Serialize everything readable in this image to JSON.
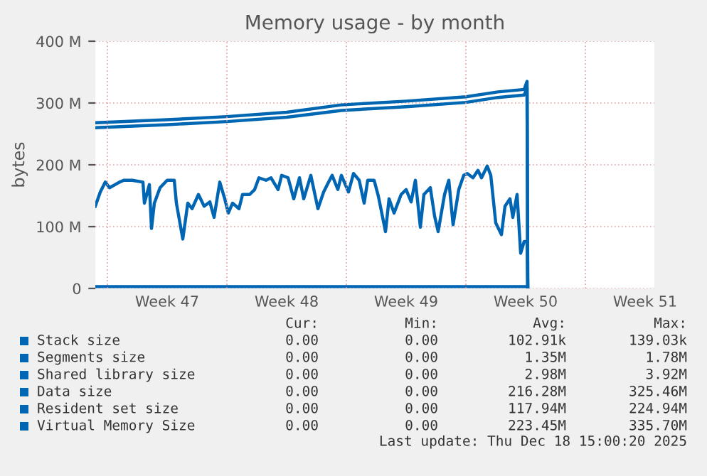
{
  "chart_data": {
    "type": "line",
    "title": "Memory usage - by month",
    "ylabel": "bytes",
    "xlim": [
      "2025-11-16T07:00",
      "2025-12-19T01:00"
    ],
    "ylim": [
      0,
      400
    ],
    "xticks": [
      {
        "value": "2025-11-17T00:00",
        "label": null
      },
      {
        "value": "2025-11-20T12:00",
        "label": "Week 47"
      },
      {
        "value": "2025-11-24T00:00",
        "label": null
      },
      {
        "value": "2025-11-27T12:00",
        "label": "Week 48"
      },
      {
        "value": "2025-12-01T00:00",
        "label": null
      },
      {
        "value": "2025-12-04T12:00",
        "label": "Week 49"
      },
      {
        "value": "2025-12-08T00:00",
        "label": null
      },
      {
        "value": "2025-12-11T12:00",
        "label": "Week 50"
      },
      {
        "value": "2025-12-15T00:00",
        "label": null
      },
      {
        "value": "2025-12-18T12:00",
        "label": "Week 51"
      }
    ],
    "yticks": [
      0,
      {
        "value": 100,
        "label": "100 M"
      },
      {
        "value": 200,
        "label": "200 M"
      },
      {
        "value": 300,
        "label": "300 M"
      },
      {
        "value": 400,
        "label": "400 M"
      }
    ],
    "grid": true,
    "legend": "bottom",
    "marker": "none",
    "line_style": "solid",
    "series": [
      {
        "name": "Stack size",
        "color": "#0066b3"
      },
      {
        "name": "Segments size",
        "color": "#0066b4"
      },
      {
        "name": "Shared library size",
        "color": "#0066b5",
        "x": [
          "2025-11-16T07:00",
          "2025-12-11T14:00",
          "2025-12-11T15:00"
        ],
        "values": [
          3,
          3,
          0
        ]
      },
      {
        "name": "Data size",
        "color": "#0067b3",
        "x": [
          "2025-11-16T07:00",
          "2025-11-20T12:00",
          "2025-11-24T00:00",
          "2025-11-27T12:00",
          "2025-11-30T17:00",
          "2025-12-04T12:00",
          "2025-12-08T00:00",
          "2025-12-09T21:00",
          "2025-12-11T10:00",
          "2025-12-11T14:00",
          "2025-12-11T15:00"
        ],
        "values": [
          260,
          265,
          270,
          277,
          288,
          294,
          301,
          309,
          313,
          325,
          0
        ]
      },
      {
        "name": "Resident set size",
        "color": "#0065b3",
        "x": [
          "2025-11-16T07:00",
          "2025-11-16T14:00",
          "2025-11-16T21:00",
          "2025-11-17T03:00",
          "2025-11-17T17:00",
          "2025-11-17T23:00",
          "2025-11-18T11:00",
          "2025-11-19T02:00",
          "2025-11-19T04:00",
          "2025-11-19T11:00",
          "2025-11-19T14:00",
          "2025-11-19T18:00",
          "2025-11-20T02:00",
          "2025-11-20T12:00",
          "2025-11-20T22:00",
          "2025-11-21T01:00",
          "2025-11-21T10:00",
          "2025-11-21T17:00",
          "2025-11-21T23:00",
          "2025-11-22T08:00",
          "2025-11-22T16:00",
          "2025-11-23T00:00",
          "2025-11-23T06:00",
          "2025-11-23T14:00",
          "2025-11-23T21:00",
          "2025-11-24T02:00",
          "2025-11-24T08:00",
          "2025-11-24T17:00",
          "2025-11-24T22:00",
          "2025-11-25T08:00",
          "2025-11-25T15:00",
          "2025-11-25T21:00",
          "2025-11-26T07:00",
          "2025-11-26T14:00",
          "2025-11-27T00:00",
          "2025-11-27T05:00",
          "2025-11-27T14:00",
          "2025-11-27T22:00",
          "2025-11-28T06:00",
          "2025-11-28T12:00",
          "2025-11-28T22:00",
          "2025-11-29T08:00",
          "2025-11-29T16:00",
          "2025-11-29T23:00",
          "2025-11-30T04:00",
          "2025-11-30T12:00",
          "2025-11-30T17:00",
          "2025-12-01T03:00",
          "2025-12-01T10:00",
          "2025-12-01T18:00",
          "2025-12-02T01:00",
          "2025-12-02T06:00",
          "2025-12-02T15:00",
          "2025-12-02T21:00",
          "2025-12-03T07:00",
          "2025-12-03T12:00",
          "2025-12-03T19:00",
          "2025-12-04T05:00",
          "2025-12-04T12:00",
          "2025-12-04T19:00",
          "2025-12-05T01:00",
          "2025-12-05T08:00",
          "2025-12-05T13:00",
          "2025-12-05T22:00",
          "2025-12-06T04:00",
          "2025-12-06T09:00",
          "2025-12-06T18:00",
          "2025-12-07T00:00",
          "2025-12-07T06:00",
          "2025-12-07T14:00",
          "2025-12-07T21:00",
          "2025-12-08T02:00",
          "2025-12-08T10:00",
          "2025-12-08T17:00",
          "2025-12-08T22:00",
          "2025-12-09T06:00",
          "2025-12-09T11:00",
          "2025-12-09T18:00",
          "2025-12-10T02:00",
          "2025-12-10T07:00",
          "2025-12-10T14:00",
          "2025-12-10T18:00",
          "2025-12-11T00:00",
          "2025-12-11T05:00",
          "2025-12-11T10:00",
          "2025-12-11T14:00",
          "2025-12-11T15:00"
        ],
        "values": [
          133,
          156,
          172,
          163,
          172,
          175,
          175,
          172,
          138,
          168,
          97,
          138,
          163,
          175,
          175,
          138,
          80,
          138,
          129,
          152,
          133,
          140,
          115,
          172,
          145,
          122,
          138,
          129,
          152,
          152,
          160,
          179,
          175,
          179,
          160,
          183,
          179,
          145,
          179,
          145,
          183,
          129,
          156,
          172,
          183,
          160,
          183,
          156,
          186,
          175,
          138,
          175,
          175,
          149,
          92,
          145,
          122,
          152,
          160,
          140,
          175,
          99,
          152,
          163,
          117,
          92,
          152,
          175,
          103,
          160,
          183,
          186,
          179,
          191,
          179,
          198,
          183,
          106,
          87,
          133,
          145,
          115,
          152,
          57,
          76,
          76,
          0
        ]
      },
      {
        "name": "Virtual Memory Size",
        "color": "#0066b2",
        "x": [
          "2025-11-16T07:00",
          "2025-11-20T12:00",
          "2025-11-24T00:00",
          "2025-11-27T12:00",
          "2025-11-30T17:00",
          "2025-12-04T12:00",
          "2025-12-08T00:00",
          "2025-12-09T21:00",
          "2025-12-11T10:00",
          "2025-12-11T14:00",
          "2025-12-11T15:00"
        ],
        "values": [
          268,
          273,
          278,
          285,
          297,
          303,
          310,
          318,
          322,
          335,
          0
        ]
      }
    ],
    "annotations": [
      "Cur:",
      "Min:",
      "Avg:",
      "Max:",
      "0.00",
      "0.00",
      "102.91k",
      "139.03k",
      "0.00",
      "0.00",
      "1.35M",
      "1.78M",
      "0.00",
      "0.00",
      "2.98M",
      "3.92M",
      "0.00",
      "0.00",
      "216.28M",
      "325.46M",
      "0.00",
      "0.00",
      "117.94M",
      "224.94M",
      "0.00",
      "0.00",
      "223.45M",
      "335.70M",
      "Last update: Thu Dec 18 15:00:20 2025"
    ]
  }
}
